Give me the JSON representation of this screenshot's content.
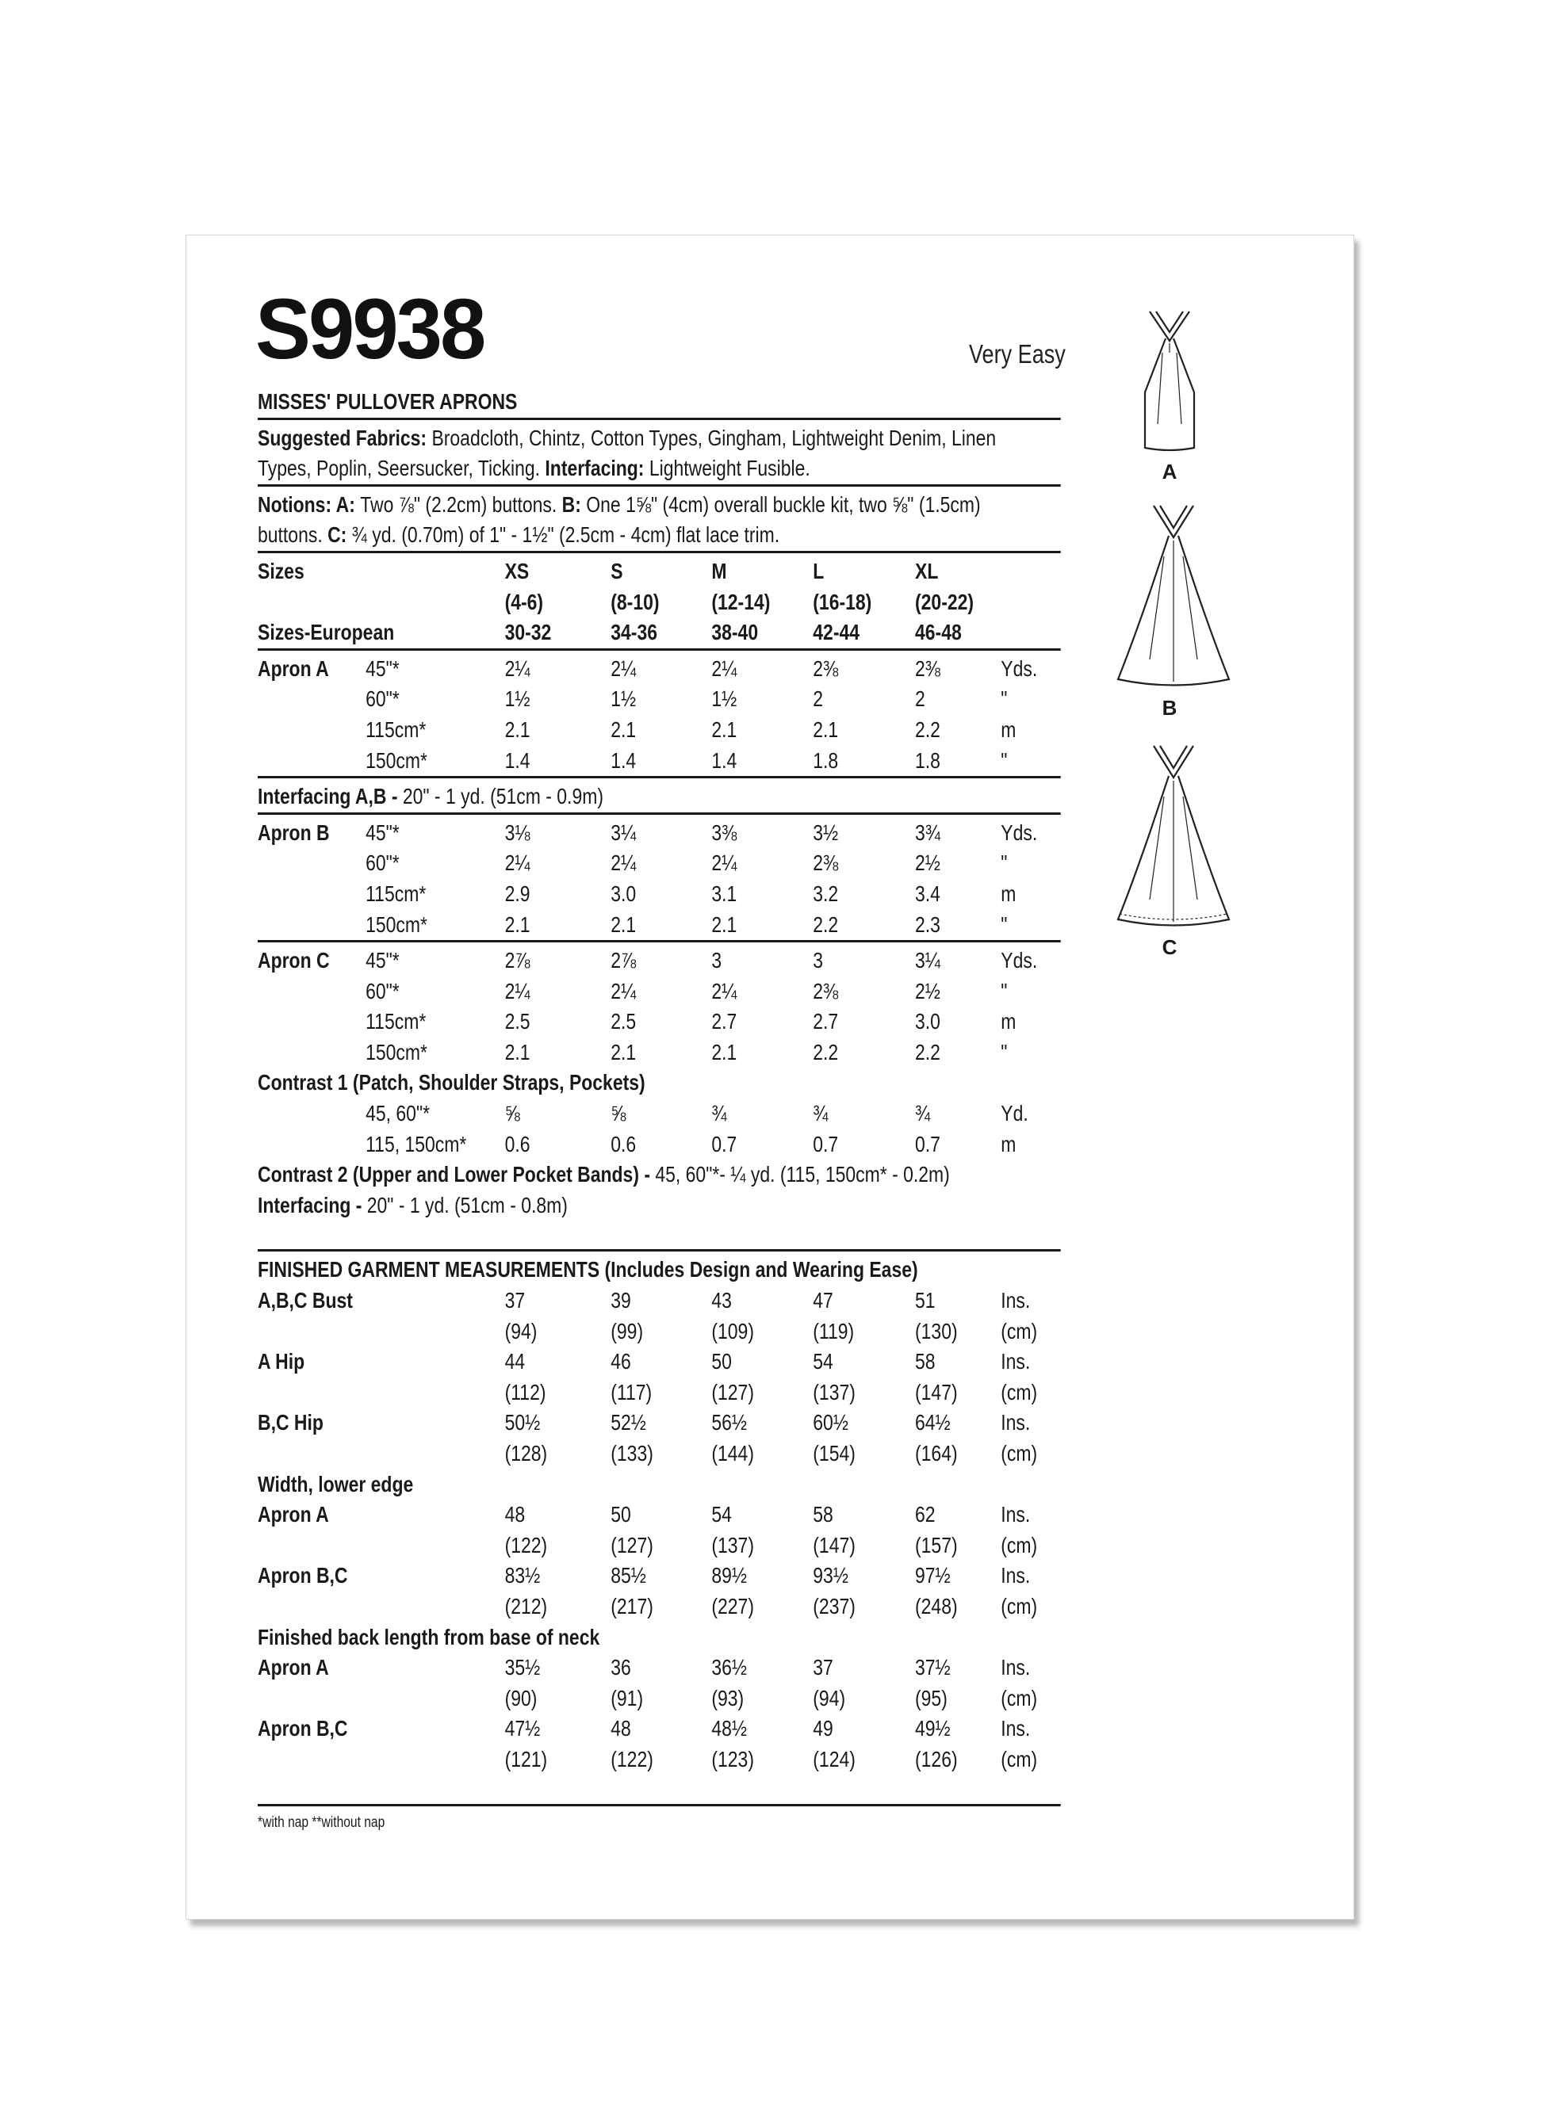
{
  "pattern_number": "S9938",
  "difficulty": "Very Easy",
  "heading": "MISSES' PULLOVER APRONS",
  "fabrics": [
    [
      {
        "b": true,
        "t": "Suggested Fabrics: "
      },
      {
        "b": false,
        "t": "Broadcloth, Chintz, Cotton Types, Gingham, Lightweight Denim, Linen"
      }
    ],
    [
      {
        "b": false,
        "t": "Types, Poplin, Seersucker, Ticking. "
      },
      {
        "b": true,
        "t": "Interfacing: "
      },
      {
        "b": false,
        "t": "Lightweight Fusible."
      }
    ]
  ],
  "notions": [
    [
      {
        "b": true,
        "t": "Notions: A: "
      },
      {
        "b": false,
        "t": "Two ⅞\" (2.2cm) buttons. "
      },
      {
        "b": true,
        "t": "B: "
      },
      {
        "b": false,
        "t": "One 1⅝\" (4cm) overall buckle kit, two ⅝\" (1.5cm)"
      }
    ],
    [
      {
        "b": false,
        "t": "buttons. "
      },
      {
        "b": true,
        "t": "C: "
      },
      {
        "b": false,
        "t": " ¾ yd. (0.70m) of 1\" - 1½\" (2.5cm - 4cm) flat lace trim."
      }
    ]
  ],
  "sizes": [
    [
      "Sizes",
      "",
      "XS",
      "S",
      "M",
      "L",
      "XL",
      ""
    ],
    [
      "",
      "",
      "(4-6)",
      "(8-10)",
      "(12-14)",
      "(16-18)",
      "(20-22)",
      ""
    ],
    [
      "Sizes-European",
      "",
      "30-32",
      "34-36",
      "38-40",
      "42-44",
      "46-48",
      ""
    ]
  ],
  "apron_a": [
    [
      "Apron A",
      "45\"*",
      "2¼",
      "2¼",
      "2¼",
      "2⅜",
      "2⅜",
      "Yds."
    ],
    [
      "",
      "60\"*",
      "1½",
      "1½",
      "1½",
      "2",
      "2",
      "\""
    ],
    [
      "",
      "115cm*",
      "2.1",
      "2.1",
      "2.1",
      "2.1",
      "2.2",
      "m"
    ],
    [
      "",
      "150cm*",
      "1.4",
      "1.4",
      "1.4",
      "1.8",
      "1.8",
      "\""
    ]
  ],
  "interfacing_ab": [
    {
      "b": true,
      "t": "Interfacing A,B - "
    },
    {
      "b": false,
      "t": "20\" - 1 yd. (51cm - 0.9m)"
    }
  ],
  "apron_b": [
    [
      "Apron B",
      "45\"*",
      "3⅛",
      "3¼",
      "3⅜",
      "3½",
      "3¾",
      "Yds."
    ],
    [
      "",
      "60\"*",
      "2¼",
      "2¼",
      "2¼",
      "2⅜",
      "2½",
      "\""
    ],
    [
      "",
      "115cm*",
      "2.9",
      "3.0",
      "3.1",
      "3.2",
      "3.4",
      "m"
    ],
    [
      "",
      "150cm*",
      "2.1",
      "2.1",
      "2.1",
      "2.2",
      "2.3",
      "\""
    ]
  ],
  "apron_c": [
    [
      "Apron C",
      "45\"*",
      "2⅞",
      "2⅞",
      "3",
      "3",
      "3¼",
      "Yds."
    ],
    [
      "",
      "60\"*",
      "2¼",
      "2¼",
      "2¼",
      "2⅜",
      "2½",
      "\""
    ],
    [
      "",
      "115cm*",
      "2.5",
      "2.5",
      "2.7",
      "2.7",
      "3.0",
      "m"
    ],
    [
      "",
      "150cm*",
      "2.1",
      "2.1",
      "2.1",
      "2.2",
      "2.2",
      "\""
    ]
  ],
  "contrast1_title": "Contrast 1 (Patch, Shoulder Straps, Pockets)",
  "contrast1": [
    [
      "",
      "45, 60\"*",
      "⅝",
      "⅝",
      "¾",
      "¾",
      "¾",
      "Yd."
    ],
    [
      "",
      "115, 150cm*",
      "0.6",
      "0.6",
      "0.7",
      "0.7",
      "0.7",
      "m"
    ]
  ],
  "contrast2": [
    {
      "b": true,
      "t": "Contrast 2 (Upper and Lower Pocket Bands) - "
    },
    {
      "b": false,
      "t": "45, 60\"*- ¼ yd. (115, 150cm* - 0.2m)"
    }
  ],
  "interfacing": [
    {
      "b": true,
      "t": "Interfacing - "
    },
    {
      "b": false,
      "t": "20\" - 1 yd. (51cm - 0.8m)"
    }
  ],
  "measurements_title": [
    {
      "b": true,
      "t": "FINISHED GARMENT MEASUREMENTS (Includes Design and Wearing Ease)"
    }
  ],
  "measurements": [
    [
      "A,B,C Bust",
      "",
      "37",
      "39",
      "43",
      "47",
      "51",
      "Ins."
    ],
    [
      "",
      "",
      "(94)",
      "(99)",
      "(109)",
      "(119)",
      "(130)",
      "(cm)"
    ],
    [
      "A Hip",
      "",
      "44",
      "46",
      "50",
      "54",
      "58",
      "Ins."
    ],
    [
      "",
      "",
      "(112)",
      "(117)",
      "(127)",
      "(137)",
      "(147)",
      "(cm)"
    ],
    [
      "B,C Hip",
      "",
      "50½",
      "52½",
      "56½",
      "60½",
      "64½",
      "Ins."
    ],
    [
      "",
      "",
      "(128)",
      "(133)",
      "(144)",
      "(154)",
      "(164)",
      "(cm)"
    ],
    [
      "Width, lower edge",
      "",
      "",
      "",
      "",
      "",
      "",
      ""
    ],
    [
      "Apron A",
      "",
      "48",
      "50",
      "54",
      "58",
      "62",
      "Ins."
    ],
    [
      "",
      "",
      "(122)",
      "(127)",
      "(137)",
      "(147)",
      "(157)",
      "(cm)"
    ],
    [
      "Apron B,C",
      "",
      "83½",
      "85½",
      "89½",
      "93½",
      "97½",
      "Ins."
    ],
    [
      "",
      "",
      "(212)",
      "(217)",
      "(227)",
      "(237)",
      "(248)",
      "(cm)"
    ],
    [
      "Finished back length from base of neck",
      "",
      "",
      "",
      "",
      "",
      "",
      ""
    ],
    [
      "Apron A",
      "",
      "35½",
      "36",
      "36½",
      "37",
      "37½",
      "Ins."
    ],
    [
      "",
      "",
      "(90)",
      "(91)",
      "(93)",
      "(94)",
      "(95)",
      "(cm)"
    ],
    [
      "Apron B,C",
      "",
      "47½",
      "48",
      "48½",
      "49",
      "49½",
      "Ins."
    ],
    [
      "",
      "",
      "(121)",
      "(122)",
      "(123)",
      "(124)",
      "(126)",
      "(cm)"
    ]
  ],
  "footnote": "*with nap   **without nap",
  "views": [
    {
      "label": "A"
    },
    {
      "label": "B"
    },
    {
      "label": "C"
    }
  ]
}
